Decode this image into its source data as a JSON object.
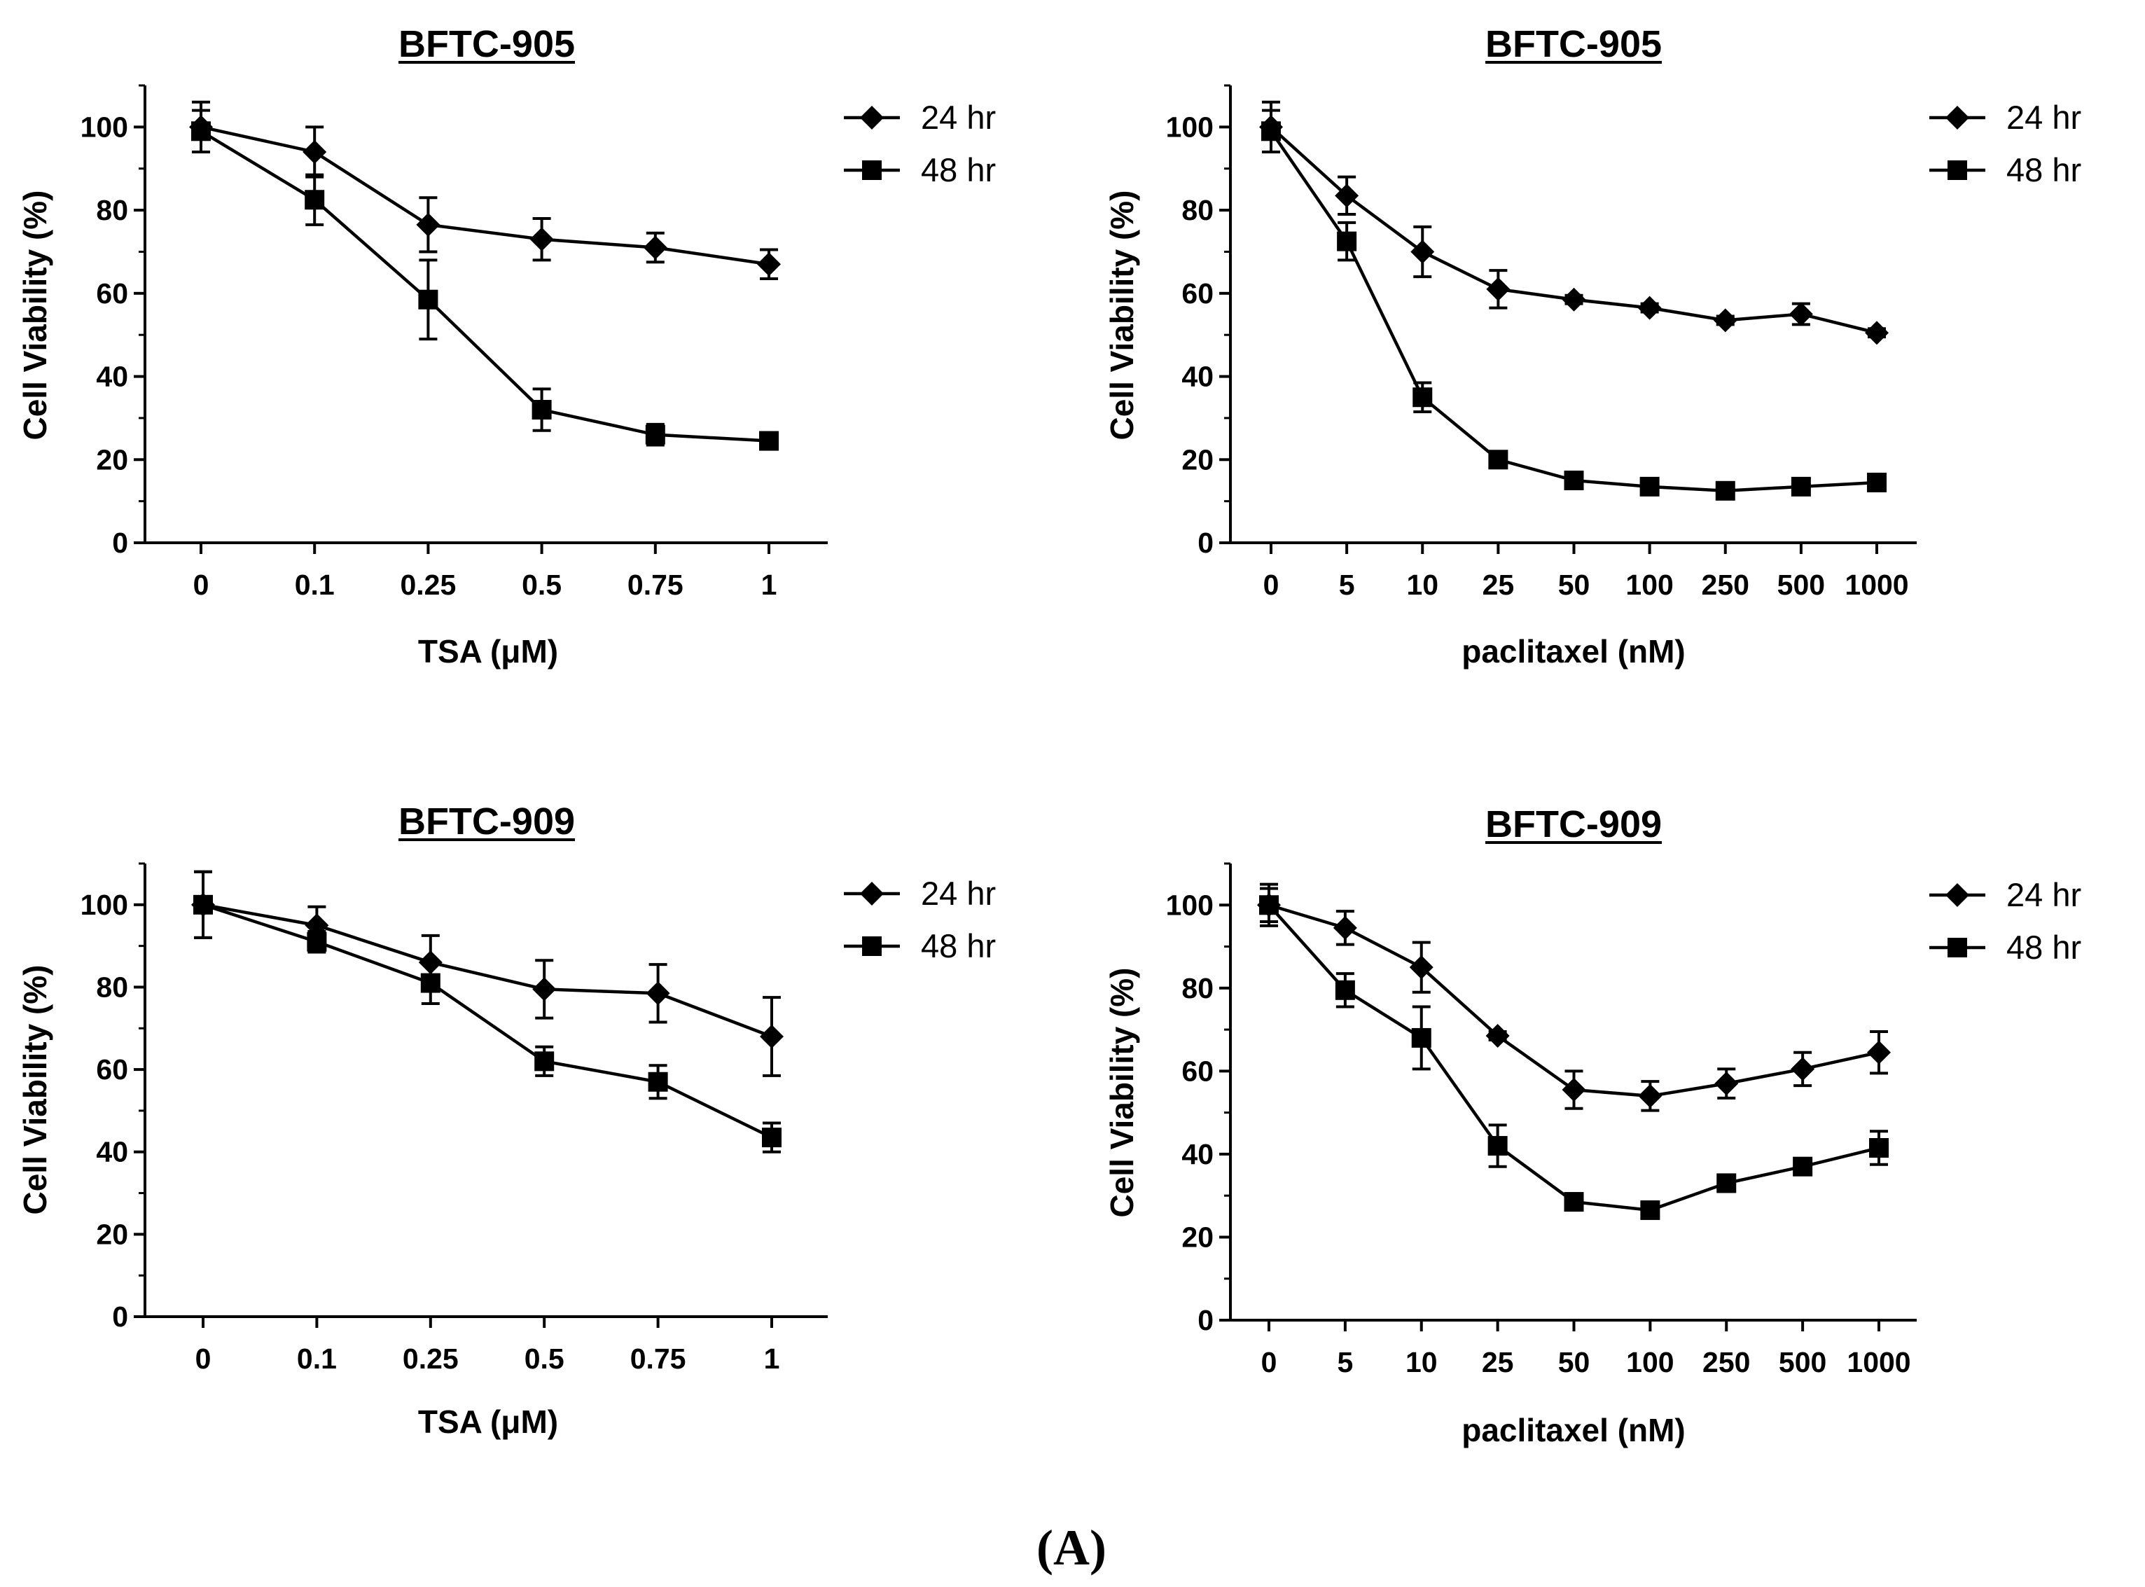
{
  "figure_label": "(A)",
  "chart_data": [
    {
      "type": "line",
      "title": "BFTC-905",
      "xlabel": "TSA (μM)",
      "ylabel": "Cell Viability (%)",
      "ylim": [
        0,
        110
      ],
      "yticks": [
        0,
        20,
        40,
        60,
        80,
        100
      ],
      "categories": [
        "0",
        "0.1",
        "0.25",
        "0.5",
        "0.75",
        "1"
      ],
      "legend_position": "right",
      "series": [
        {
          "name": "24 hr",
          "marker": "diamond",
          "values": [
            100,
            94,
            76.5,
            73,
            71,
            67
          ],
          "errors": [
            6,
            6,
            6.5,
            5,
            3.5,
            3.5
          ]
        },
        {
          "name": "48 hr",
          "marker": "square",
          "values": [
            99,
            82.5,
            58.5,
            32,
            26,
            24.5
          ],
          "errors": [
            5,
            6,
            9.5,
            5,
            2.5,
            2
          ]
        }
      ]
    },
    {
      "type": "line",
      "title": "BFTC-905",
      "xlabel": "paclitaxel (nM)",
      "ylabel": "Cell Viability (%)",
      "ylim": [
        0,
        110
      ],
      "yticks": [
        0,
        20,
        40,
        60,
        80,
        100
      ],
      "categories": [
        "0",
        "5",
        "10",
        "25",
        "50",
        "100",
        "250",
        "500",
        "1000"
      ],
      "legend_position": "right",
      "series": [
        {
          "name": "24 hr",
          "marker": "diamond",
          "values": [
            100,
            83.5,
            70,
            61,
            58.5,
            56.5,
            53.5,
            55,
            50.5
          ],
          "errors": [
            6,
            4.5,
            6,
            4.5,
            1,
            1,
            1,
            2.5,
            1
          ]
        },
        {
          "name": "48 hr",
          "marker": "square",
          "values": [
            99,
            72.5,
            35,
            20,
            15,
            13.5,
            12.5,
            13.5,
            14.5
          ],
          "errors": [
            5,
            4.5,
            3.5,
            1,
            1,
            1,
            1,
            1,
            1
          ]
        }
      ]
    },
    {
      "type": "line",
      "title": "BFTC-909",
      "xlabel": "TSA (μM)",
      "ylabel": "Cell Viability (%)",
      "ylim": [
        0,
        110
      ],
      "yticks": [
        0,
        20,
        40,
        60,
        80,
        100
      ],
      "categories": [
        "0",
        "0.1",
        "0.25",
        "0.5",
        "0.75",
        "1"
      ],
      "legend_position": "right",
      "series": [
        {
          "name": "24 hr",
          "marker": "diamond",
          "values": [
            100,
            95,
            86,
            79.5,
            78.5,
            68
          ],
          "errors": [
            8,
            4.5,
            6.5,
            7,
            7,
            9.5
          ]
        },
        {
          "name": "48 hr",
          "marker": "square",
          "values": [
            100,
            91,
            81,
            62,
            57,
            43.5
          ],
          "errors": [
            8,
            2.5,
            5,
            3.5,
            4,
            3.5
          ]
        }
      ]
    },
    {
      "type": "line",
      "title": "BFTC-909",
      "xlabel": "paclitaxel (nM)",
      "ylabel": "Cell Viability (%)",
      "ylim": [
        0,
        110
      ],
      "yticks": [
        0,
        20,
        40,
        60,
        80,
        100
      ],
      "categories": [
        "0",
        "5",
        "10",
        "25",
        "50",
        "100",
        "250",
        "500",
        "1000"
      ],
      "legend_position": "right",
      "series": [
        {
          "name": "24 hr",
          "marker": "diamond",
          "values": [
            100,
            94.5,
            85,
            68.5,
            55.5,
            54,
            57,
            60.5,
            64.5
          ],
          "errors": [
            5,
            4,
            6,
            1,
            4.5,
            3.5,
            3.5,
            4,
            5
          ]
        },
        {
          "name": "48 hr",
          "marker": "square",
          "values": [
            100,
            79.5,
            68,
            42,
            28.5,
            26.5,
            33,
            37,
            41.5
          ],
          "errors": [
            4,
            4,
            7.5,
            5,
            2,
            1,
            2,
            1,
            4
          ]
        }
      ]
    }
  ]
}
